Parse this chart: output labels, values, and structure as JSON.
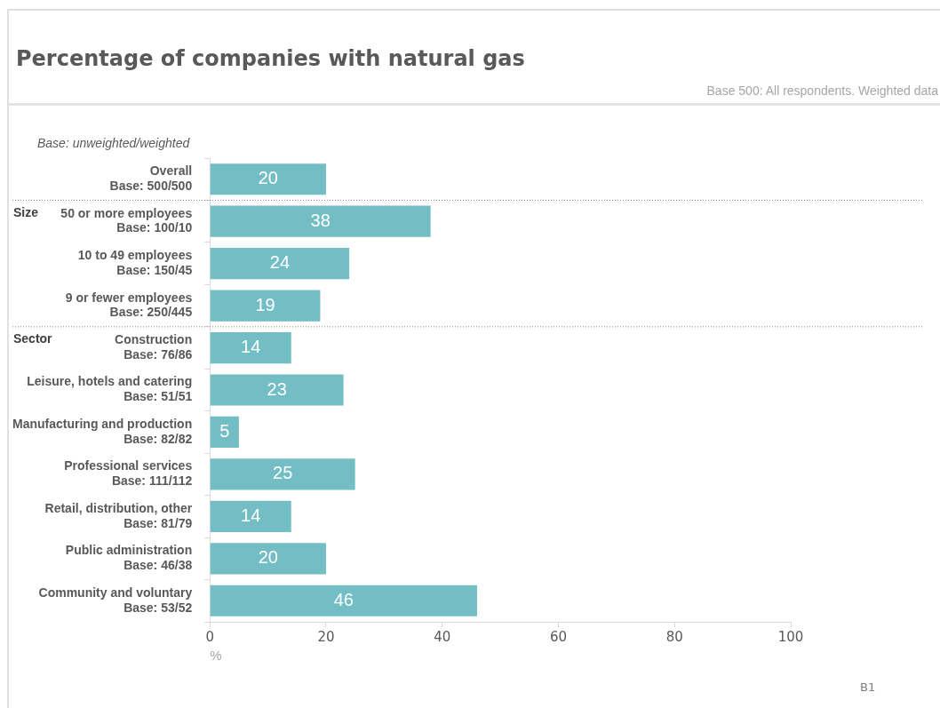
{
  "chart_data": {
    "type": "bar",
    "orientation": "horizontal",
    "title": "Percentage of companies with natural gas",
    "subtitle": "Base 500: All respondents. Weighted data",
    "categories": [
      "Overall\nBase: 500/500",
      "50 or more employees\nBase: 100/10",
      "10 to 49 employees\nBase: 150/45",
      "9 or fewer employees\nBase: 250/445",
      "Construction\nBase: 76/86",
      "Leisure, hotels and catering\nBase: 51/51",
      "Manufacturing and production\nBase: 82/82",
      "Professional services\nBase: 111/112",
      "Retail, distribution, other\nBase: 81/79",
      "Public administration\nBase: 46/38",
      "Community and voluntary\nBase: 53/52"
    ],
    "values": [
      20,
      38,
      24,
      19,
      14,
      23,
      5,
      25,
      14,
      20,
      46
    ],
    "color": "#72bec4",
    "data_labels": true,
    "xlim": [
      0,
      100
    ],
    "xticks": [
      0,
      20,
      40,
      60,
      80,
      100
    ],
    "xlabel": "%",
    "grid": false,
    "legend": false,
    "annotations": [
      "Base: unweighted/weighted",
      "Size",
      "Sector",
      "B1"
    ]
  }
}
